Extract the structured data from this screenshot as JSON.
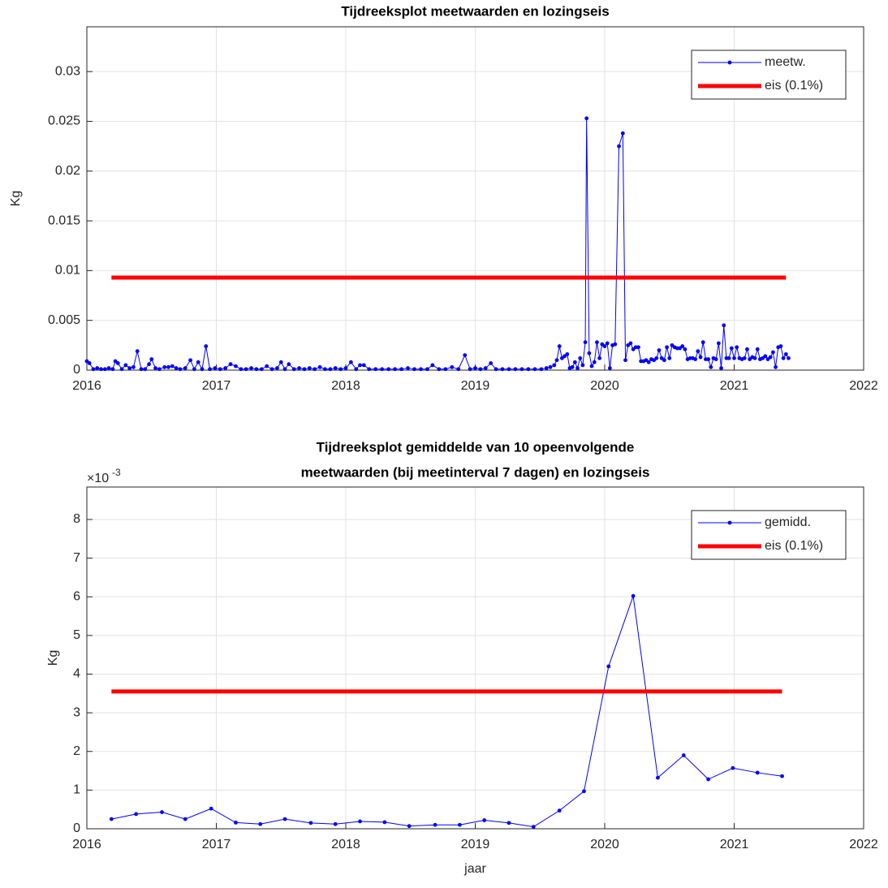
{
  "chart_data": [
    {
      "type": "line",
      "title": [
        "Tijdreeksplot meetwaarden en lozingseis"
      ],
      "ylabel": "Kg",
      "xlim": [
        2016,
        2022
      ],
      "xticks": [
        2016,
        2017,
        2018,
        2019,
        2020,
        2021,
        2022
      ],
      "ylim": [
        0,
        0.0345
      ],
      "yticks": [
        0,
        0.005,
        0.01,
        0.015,
        0.02,
        0.025,
        0.03
      ],
      "grid": true,
      "legend": "northeast",
      "series": [
        {
          "name": "meetw.",
          "color": "#0000ff",
          "marker": true,
          "x": [
            2016.0,
            2016.02,
            2016.05,
            2016.08,
            2016.11,
            2016.14,
            2016.17,
            2016.2,
            2016.22,
            2016.24,
            2016.27,
            2016.3,
            2016.33,
            2016.36,
            2016.39,
            2016.42,
            2016.45,
            2016.48,
            2016.5,
            2016.53,
            2016.56,
            2016.6,
            2016.63,
            2016.66,
            2016.69,
            2016.72,
            2016.76,
            2016.8,
            2016.83,
            2016.86,
            2016.89,
            2016.92,
            2016.95,
            2016.99,
            2017.03,
            2017.07,
            2017.11,
            2017.15,
            2017.19,
            2017.23,
            2017.27,
            2017.31,
            2017.35,
            2017.39,
            2017.43,
            2017.47,
            2017.5,
            2017.53,
            2017.56,
            2017.6,
            2017.64,
            2017.68,
            2017.72,
            2017.76,
            2017.8,
            2017.84,
            2017.88,
            2017.92,
            2017.96,
            2018.0,
            2018.04,
            2018.08,
            2018.11,
            2018.14,
            2018.18,
            2018.23,
            2018.28,
            2018.33,
            2018.38,
            2018.43,
            2018.48,
            2018.53,
            2018.58,
            2018.63,
            2018.67,
            2018.72,
            2018.77,
            2018.82,
            2018.87,
            2018.92,
            2018.96,
            2019.0,
            2019.04,
            2019.08,
            2019.12,
            2019.16,
            2019.21,
            2019.26,
            2019.31,
            2019.36,
            2019.41,
            2019.46,
            2019.51,
            2019.55,
            2019.58,
            2019.61,
            2019.63,
            2019.65,
            2019.67,
            2019.69,
            2019.71,
            2019.73,
            2019.75,
            2019.77,
            2019.79,
            2019.81,
            2019.83,
            2019.85,
            2019.86,
            2019.88,
            2019.9,
            2019.92,
            2019.94,
            2019.96,
            2019.98,
            2020.0,
            2020.02,
            2020.04,
            2020.06,
            2020.08,
            2020.11,
            2020.14,
            2020.16,
            2020.18,
            2020.2,
            2020.22,
            2020.24,
            2020.26,
            2020.28,
            2020.3,
            2020.32,
            2020.34,
            2020.36,
            2020.38,
            2020.4,
            2020.42,
            2020.44,
            2020.46,
            2020.48,
            2020.5,
            2020.52,
            2020.54,
            2020.56,
            2020.58,
            2020.6,
            2020.62,
            2020.64,
            2020.66,
            2020.68,
            2020.7,
            2020.72,
            2020.74,
            2020.76,
            2020.78,
            2020.8,
            2020.82,
            2020.84,
            2020.86,
            2020.88,
            2020.9,
            2020.92,
            2020.94,
            2020.96,
            2020.98,
            2021.0,
            2021.02,
            2021.04,
            2021.06,
            2021.08,
            2021.1,
            2021.12,
            2021.14,
            2021.16,
            2021.18,
            2021.2,
            2021.22,
            2021.24,
            2021.26,
            2021.28,
            2021.3,
            2021.32,
            2021.34,
            2021.36,
            2021.38,
            2021.4,
            2021.42
          ],
          "values": [
            0.0009,
            0.0007,
            0.0001,
            0.0002,
            0.0001,
            0.0001,
            0.0002,
            0.0001,
            0.0009,
            0.0007,
            0.0001,
            0.0005,
            0.0002,
            0.0003,
            0.0019,
            0.0001,
            0.0001,
            0.0006,
            0.0011,
            0.0002,
            0.0001,
            0.0003,
            0.0003,
            0.0004,
            0.0002,
            0.0001,
            0.0002,
            0.001,
            0.0001,
            0.0008,
            0.0001,
            0.0024,
            0.0001,
            0.0002,
            0.0001,
            0.0002,
            0.0006,
            0.0004,
            0.0001,
            0.0001,
            0.0002,
            0.0001,
            0.0001,
            0.0004,
            0.0001,
            0.0002,
            0.0008,
            0.0001,
            0.0006,
            0.0001,
            0.0002,
            0.0001,
            0.0002,
            0.0001,
            0.0003,
            0.0001,
            0.0001,
            0.0002,
            0.0001,
            0.0002,
            0.0008,
            0.0001,
            0.0005,
            0.0005,
            0.0001,
            0.0001,
            0.0001,
            0.0001,
            0.0001,
            0.0001,
            0.0002,
            0.0001,
            0.0001,
            0.0001,
            0.0005,
            0.0001,
            0.0001,
            0.0003,
            0.0001,
            0.0015,
            0.0001,
            0.0002,
            0.0001,
            0.0002,
            0.0007,
            0.0001,
            0.0001,
            0.0001,
            0.0001,
            0.0001,
            0.0001,
            0.0001,
            0.0001,
            0.0002,
            0.0003,
            0.0005,
            0.001,
            0.0024,
            0.0012,
            0.0014,
            0.0016,
            0.0002,
            0.0003,
            0.0008,
            0.0002,
            0.0012,
            0.0005,
            0.0028,
            0.0253,
            0.0017,
            0.0004,
            0.0008,
            0.0028,
            0.0012,
            0.0026,
            0.0024,
            0.0027,
            0.0002,
            0.0025,
            0.0026,
            0.0225,
            0.0238,
            0.001,
            0.0025,
            0.0027,
            0.0021,
            0.0023,
            0.0023,
            0.0009,
            0.0009,
            0.001,
            0.0008,
            0.0011,
            0.001,
            0.0012,
            0.002,
            0.0012,
            0.001,
            0.0023,
            0.0012,
            0.0025,
            0.0023,
            0.0022,
            0.0022,
            0.0024,
            0.0021,
            0.0011,
            0.0012,
            0.0012,
            0.0011,
            0.0019,
            0.0013,
            0.0028,
            0.0011,
            0.0011,
            0.0003,
            0.0012,
            0.0011,
            0.0027,
            0.0002,
            0.0045,
            0.0012,
            0.0012,
            0.0022,
            0.0012,
            0.0023,
            0.0012,
            0.0011,
            0.0012,
            0.0021,
            0.0011,
            0.0013,
            0.0012,
            0.0021,
            0.0011,
            0.0012,
            0.0014,
            0.0011,
            0.0013,
            0.0018,
            0.0003,
            0.0023,
            0.0024,
            0.0012,
            0.0016,
            0.0012
          ]
        },
        {
          "name": "eis (0.1%)",
          "color": "#ff0000",
          "marker": false,
          "x": [
            2016.19,
            2021.4
          ],
          "values": [
            0.0093,
            0.0093
          ]
        }
      ]
    },
    {
      "type": "line",
      "title": [
        "Tijdreeksplot gemiddelde van 10 opeenvolgende",
        "meetwaarden (bij meetinterval 7 dagen) en lozingseis"
      ],
      "ylabel": "Kg",
      "xlabel": "jaar",
      "y_multiplier": {
        "base": "×10",
        "exponent": "-3"
      },
      "xlim": [
        2016,
        2022
      ],
      "xticks": [
        2016,
        2017,
        2018,
        2019,
        2020,
        2021,
        2022
      ],
      "ylim": [
        0,
        8.84
      ],
      "yticks": [
        0,
        1,
        2,
        3,
        4,
        5,
        6,
        7,
        8
      ],
      "grid": true,
      "legend": "northeast",
      "series": [
        {
          "name": "gemidd.",
          "color": "#0000ff",
          "marker": true,
          "x": [
            2016.19,
            2016.38,
            2016.58,
            2016.76,
            2016.96,
            2017.15,
            2017.34,
            2017.53,
            2017.73,
            2017.92,
            2018.11,
            2018.3,
            2018.49,
            2018.69,
            2018.88,
            2019.07,
            2019.26,
            2019.45,
            2019.65,
            2019.84,
            2020.03,
            2020.22,
            2020.41,
            2020.61,
            2020.8,
            2020.99,
            2021.18,
            2021.37
          ],
          "values": [
            0.25,
            0.38,
            0.43,
            0.25,
            0.52,
            0.16,
            0.12,
            0.25,
            0.15,
            0.12,
            0.19,
            0.17,
            0.07,
            0.1,
            0.1,
            0.22,
            0.15,
            0.05,
            0.47,
            0.97,
            4.2,
            6.02,
            1.32,
            1.9,
            1.28,
            1.57,
            1.45,
            1.36
          ]
        },
        {
          "name": "eis (0.1%)",
          "color": "#ff0000",
          "marker": false,
          "x": [
            2016.19,
            2021.37
          ],
          "values": [
            3.55,
            3.55
          ]
        }
      ]
    }
  ]
}
